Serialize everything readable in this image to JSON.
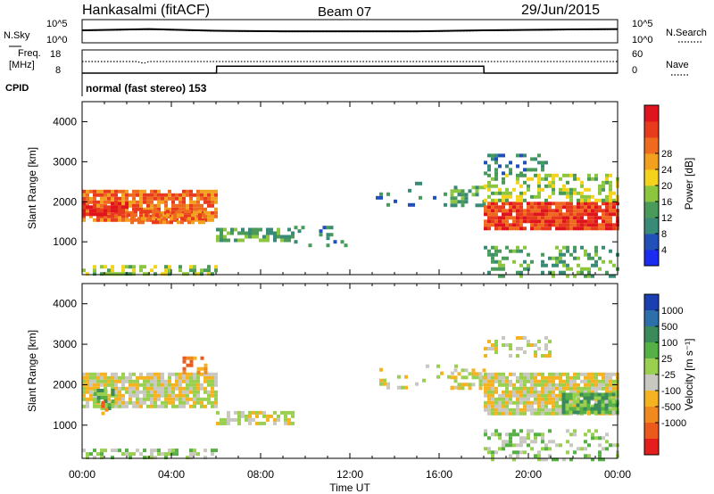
{
  "header": {
    "station": "Hankasalmi (fitACF)",
    "beam": "Beam 07",
    "date": "29/Jun/2015"
  },
  "aux": {
    "nsky_label": "N.Sky",
    "nsearch_label": "N.Search",
    "noise_ticks_left": [
      "10^5",
      "10^0"
    ],
    "noise_ticks_right": [
      "10^5",
      "10^0"
    ],
    "freq_label_1": "Freq.",
    "freq_label_2": "[MHz]",
    "freq_ticks": [
      "18",
      "8"
    ],
    "nave_label": "Nave",
    "nave_ticks": [
      "60",
      "0"
    ],
    "cpid_label": "CPID",
    "cpid_value": "normal (fast stereo) 153"
  },
  "axes": {
    "time_ticks": [
      "00:00",
      "04:00",
      "08:00",
      "12:00",
      "16:00",
      "20:00",
      "00:00"
    ],
    "xlabel": "Time UT",
    "ylabel": "Slant Range [km]",
    "range_ticks": [
      "1000",
      "2000",
      "3000",
      "4000"
    ]
  },
  "colorbars": {
    "power": {
      "label": "Power [dB]",
      "ticks": [
        "4",
        "8",
        "12",
        "16",
        "20",
        "24",
        "28"
      ],
      "colors": [
        "#1a2cf0",
        "#2050b8",
        "#3a8a78",
        "#4a9a5a",
        "#8cc63f",
        "#f5d21c",
        "#f2a11f",
        "#ef6a1f",
        "#e83a1c",
        "#e0141c"
      ]
    },
    "velocity": {
      "label": "Velocity [m s⁻¹]",
      "ticks": [
        "1000",
        "500",
        "100",
        "25",
        "-25",
        "-100",
        "-500",
        "-1000"
      ],
      "colors": [
        "#1a3fb0",
        "#2d6fa8",
        "#3a8a5a",
        "#55b045",
        "#9ad04f",
        "#c8c8c0",
        "#f5b321",
        "#f08a1e",
        "#eb5a1c",
        "#e41e1c"
      ]
    }
  },
  "chart_data": {
    "type": "heatmap",
    "x_range_hours": [
      0,
      24
    ],
    "y_range_km": [
      180,
      4500
    ],
    "noise_sky": {
      "x": [
        0,
        3,
        6,
        9,
        12,
        15,
        18,
        21,
        24
      ],
      "y": [
        500,
        900,
        400,
        300,
        300,
        300,
        500,
        700,
        900
      ],
      "yscale": "log",
      "ylim": [
        1,
        100000
      ]
    },
    "frequency_mhz": {
      "x": [
        0,
        6.02,
        6.03,
        18.0,
        18.01,
        24
      ],
      "y": [
        8.0,
        8.0,
        11.0,
        11.0,
        8.0,
        8.0
      ],
      "ylim": [
        8,
        18
      ]
    },
    "nave": {
      "x": [
        0,
        2.5,
        2.6,
        2.8,
        3.0,
        24
      ],
      "y": [
        30,
        30,
        27,
        26,
        30,
        30
      ],
      "ylim": [
        0,
        60
      ]
    },
    "power_echoes": [
      {
        "t0": 0.0,
        "t1": 6.0,
        "r0": 180,
        "r1": 420,
        "level": 4,
        "density": 0.55
      },
      {
        "t0": 0.0,
        "t1": 6.0,
        "r0": 1500,
        "r1": 2300,
        "level": 7,
        "density": 0.85
      },
      {
        "t0": 0.0,
        "t1": 2.0,
        "r0": 1700,
        "r1": 2000,
        "level": 9,
        "density": 0.7
      },
      {
        "t0": 2.0,
        "t1": 5.5,
        "r0": 1500,
        "r1": 1800,
        "level": 7,
        "density": 0.6
      },
      {
        "t0": 6.0,
        "t1": 9.5,
        "r0": 1050,
        "r1": 1350,
        "level": 3,
        "density": 0.6
      },
      {
        "t0": 9.5,
        "t1": 13.0,
        "r0": 900,
        "r1": 1400,
        "level": 2,
        "density": 0.08
      },
      {
        "t0": 13.0,
        "t1": 17.0,
        "r0": 1900,
        "r1": 2500,
        "level": 2,
        "density": 0.12
      },
      {
        "t0": 16.5,
        "t1": 18.0,
        "r0": 1900,
        "r1": 2400,
        "level": 3,
        "density": 0.55
      },
      {
        "t0": 18.0,
        "t1": 24.0,
        "r0": 1300,
        "r1": 2000,
        "level": 8,
        "density": 0.9
      },
      {
        "t0": 18.0,
        "t1": 24.0,
        "r0": 2000,
        "r1": 2700,
        "level": 4,
        "density": 0.5
      },
      {
        "t0": 18.0,
        "t1": 21.0,
        "r0": 2700,
        "r1": 3200,
        "level": 2,
        "density": 0.4
      },
      {
        "t0": 18.0,
        "t1": 24.0,
        "r0": 180,
        "r1": 900,
        "level": 3,
        "density": 0.3
      }
    ],
    "velocity_echoes": [
      {
        "t0": 0.0,
        "t1": 6.0,
        "r0": 180,
        "r1": 420,
        "vbin": 4,
        "density": 0.5
      },
      {
        "t0": 0.0,
        "t1": 6.0,
        "r0": 1500,
        "r1": 2300,
        "vbin": 5,
        "density": 0.85
      },
      {
        "t0": 0.5,
        "t1": 1.4,
        "r0": 1400,
        "r1": 1900,
        "vbin": 3,
        "density": 0.7
      },
      {
        "t0": 0.7,
        "t1": 1.1,
        "r0": 1300,
        "r1": 1600,
        "vbin": 7,
        "density": 0.5
      },
      {
        "t0": 4.5,
        "t1": 5.5,
        "r0": 2300,
        "r1": 2700,
        "vbin": 7,
        "density": 0.4
      },
      {
        "t0": 6.0,
        "t1": 9.5,
        "r0": 1050,
        "r1": 1350,
        "vbin": 5,
        "density": 0.6
      },
      {
        "t0": 13.0,
        "t1": 17.0,
        "r0": 1900,
        "r1": 2500,
        "vbin": 5,
        "density": 0.12
      },
      {
        "t0": 16.5,
        "t1": 18.0,
        "r0": 1900,
        "r1": 2400,
        "vbin": 5,
        "density": 0.55
      },
      {
        "t0": 18.0,
        "t1": 24.0,
        "r0": 1300,
        "r1": 2300,
        "vbin": 5,
        "density": 0.9
      },
      {
        "t0": 21.5,
        "t1": 24.0,
        "r0": 1300,
        "r1": 1800,
        "vbin": 3,
        "density": 0.85
      },
      {
        "t0": 18.0,
        "t1": 21.0,
        "r0": 2700,
        "r1": 3200,
        "vbin": 5,
        "density": 0.4
      },
      {
        "t0": 18.0,
        "t1": 24.0,
        "r0": 180,
        "r1": 900,
        "vbin": 4,
        "density": 0.3
      }
    ]
  }
}
